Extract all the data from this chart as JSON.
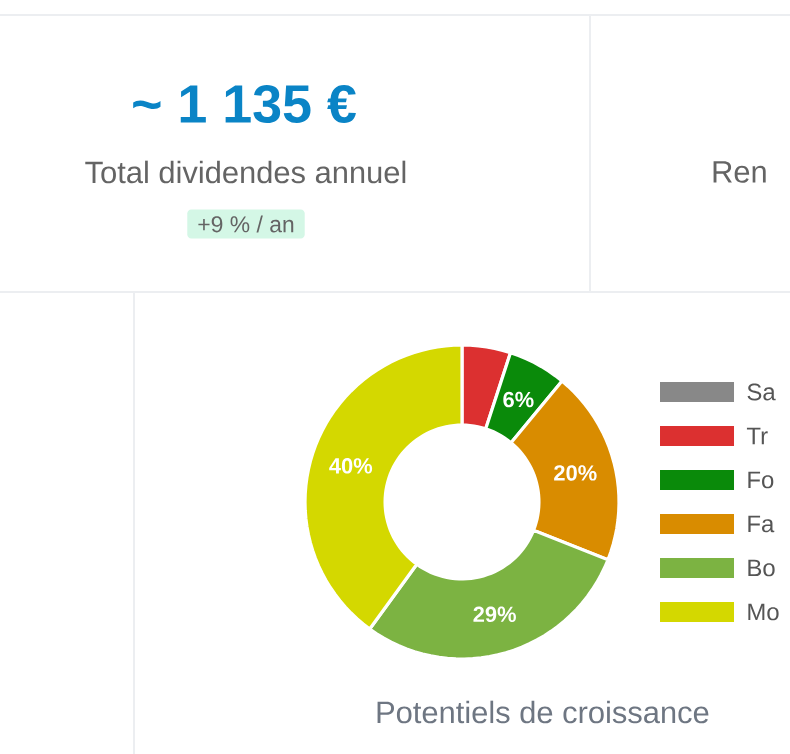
{
  "chart_data": [
    {
      "type": "other",
      "title": "~ 1 135 €",
      "subtitle": "Total dividendes annuel",
      "annotations": [
        "+9 % / an",
        "Ren"
      ]
    },
    {
      "type": "donut",
      "title": "Potentiels de croissance",
      "categories": [
        "Sa",
        "Tr",
        "Fo",
        "Fa",
        "Bo",
        "Mo"
      ],
      "values": [
        0,
        5,
        6,
        20,
        29,
        40
      ],
      "colors": [
        "#888888",
        "#dc3030",
        "#0a8a0a",
        "#d98c00",
        "#7cb342",
        "#d4d800"
      ],
      "value_labels": [
        null,
        null,
        "6%",
        "20%",
        "29%",
        "40%"
      ],
      "legend": "right"
    }
  ]
}
